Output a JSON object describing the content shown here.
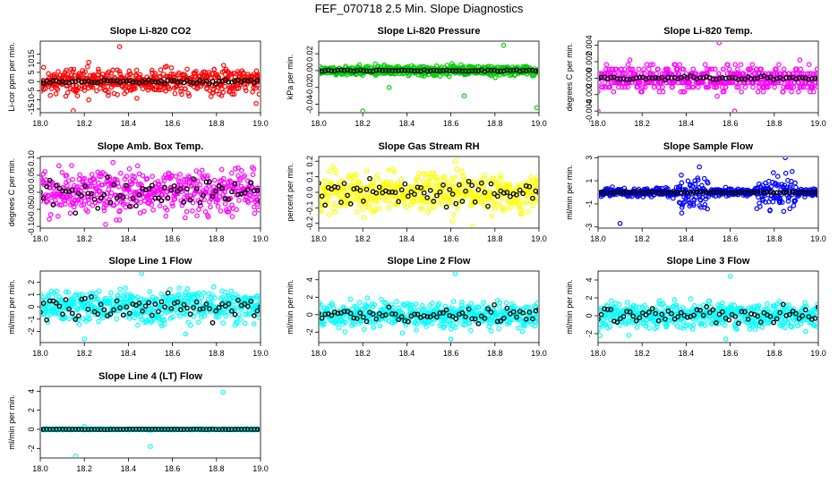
{
  "title": "FEF_070718  2.5 Min. Slope Diagnostics",
  "chart_data": [
    {
      "id": "co2",
      "type": "scatter",
      "title": "Slope Li-820 CO2",
      "ylabel": "Li-cor ppm per min.",
      "xlim": [
        18.0,
        19.0
      ],
      "ylim": [
        -17,
        22
      ],
      "xticks": [
        "18.0",
        "18.2",
        "18.4",
        "18.6",
        "18.8",
        "19.0"
      ],
      "yticks": [
        "-15",
        "-10",
        "-5",
        "0",
        "5",
        "10",
        "15"
      ],
      "color": "#ff0000",
      "amp": 5,
      "spike": "none",
      "spikes": [
        [
          18.36,
          19
        ],
        [
          18.15,
          -16
        ],
        [
          18.98,
          -12
        ],
        [
          18.22,
          -10
        ]
      ],
      "seed": 11
    },
    {
      "id": "pressure",
      "type": "scatter",
      "title": "Slope Li-820 Pressure",
      "ylabel": "kPa per min.",
      "xlim": [
        18.0,
        19.0
      ],
      "ylim": [
        -0.05,
        0.035
      ],
      "xticks": [
        "18.0",
        "18.2",
        "18.4",
        "18.6",
        "18.8",
        "19.0"
      ],
      "yticks": [
        "-0.04",
        "-0.02",
        "0.00",
        "0.02"
      ],
      "color": "#00cc00",
      "amp": 0.004,
      "spike": "none",
      "spikes": [
        [
          18.84,
          0.03
        ],
        [
          18.2,
          -0.048
        ],
        [
          18.99,
          -0.044
        ],
        [
          18.66,
          -0.03
        ],
        [
          18.32,
          -0.02
        ]
      ],
      "seed": 23
    },
    {
      "id": "temp",
      "type": "scatter",
      "title": "Slope Li-820 Temp.",
      "ylabel": "degrees C per min.",
      "xlim": [
        18.0,
        19.0
      ],
      "ylim": [
        -0.0042,
        0.0045
      ],
      "xticks": [
        "18.0",
        "18.2",
        "18.4",
        "18.6",
        "18.8",
        "19.0"
      ],
      "yticks": [
        "-0.004",
        "-0.002",
        "0.000",
        "0.002",
        "0.004"
      ],
      "color": "#ff00ff",
      "amp": 0.0011,
      "spike": "levels",
      "spikes": [
        [
          18.55,
          0.0043
        ],
        [
          18.0,
          -0.004
        ],
        [
          18.62,
          -0.004
        ]
      ],
      "seed": 37
    },
    {
      "id": "box",
      "type": "scatter",
      "title": "Slope Amb. Box Temp.",
      "ylabel": "degrees C per min.",
      "xlim": [
        18.0,
        19.0
      ],
      "ylim": [
        -0.105,
        0.105
      ],
      "xticks": [
        "18.0",
        "18.2",
        "18.4",
        "18.6",
        "18.8",
        "19.0"
      ],
      "yticks": [
        "-0.10",
        "-0.05",
        "0.00",
        "0.05",
        "0.10"
      ],
      "color": "#ff00ff",
      "amp": 0.045,
      "spike": "none",
      "spikes": [],
      "seed": 41
    },
    {
      "id": "rh",
      "type": "scatter",
      "title": "Slope Gas Stream RH",
      "ylabel": "percent per min.",
      "xlim": [
        18.0,
        19.0
      ],
      "ylim": [
        -0.23,
        0.23
      ],
      "xticks": [
        "18.0",
        "18.2",
        "18.4",
        "18.6",
        "18.8",
        "19.0"
      ],
      "yticks": [
        "-0.2",
        "-0.1",
        "0.0",
        "0.1",
        "0.2"
      ],
      "color": "#ffff00",
      "amp": 0.09,
      "spike": "none",
      "spikes": [
        [
          18.62,
          0.2
        ],
        [
          18.7,
          -0.22
        ]
      ],
      "seed": 53
    },
    {
      "id": "sample",
      "type": "scatter",
      "title": "Slope Sample Flow",
      "ylabel": "ml/min per min.",
      "xlim": [
        18.0,
        19.0
      ],
      "ylim": [
        -3.1,
        3.1
      ],
      "xticks": [
        "18.0",
        "18.2",
        "18.4",
        "18.6",
        "18.8",
        "19.0"
      ],
      "yticks": [
        "-3",
        "-1",
        "1",
        "3"
      ],
      "color": "#0000ff",
      "amp": 0.25,
      "spike": "bursts",
      "spikes": [
        [
          18.85,
          3.0
        ],
        [
          18.1,
          -2.7
        ],
        [
          18.46,
          2.2
        ],
        [
          18.38,
          -1.8
        ],
        [
          18.78,
          -1.6
        ]
      ],
      "seed": 67
    },
    {
      "id": "line1",
      "type": "scatter",
      "title": "Slope Line 1 Flow",
      "ylabel": "ml/min per min.",
      "xlim": [
        18.0,
        19.0
      ],
      "ylim": [
        -2.9,
        2.9
      ],
      "xticks": [
        "18.0",
        "18.2",
        "18.4",
        "18.6",
        "18.8",
        "19.0"
      ],
      "yticks": [
        "-2",
        "-1",
        "0",
        "1",
        "2"
      ],
      "color": "#00ffff",
      "amp": 0.9,
      "spike": "none",
      "spikes": [
        [
          18.46,
          2.7
        ],
        [
          18.2,
          -2.6
        ],
        [
          18.66,
          -2.2
        ]
      ],
      "seed": 71
    },
    {
      "id": "line2",
      "type": "scatter",
      "title": "Slope Line 2 Flow",
      "ylabel": "ml/min per min.",
      "xlim": [
        18.0,
        19.0
      ],
      "ylim": [
        -3.2,
        5.0
      ],
      "xticks": [
        "18.0",
        "18.2",
        "18.4",
        "18.6",
        "18.8",
        "19.0"
      ],
      "yticks": [
        "-2",
        "0",
        "2",
        "4"
      ],
      "color": "#00ffff",
      "amp": 1.0,
      "spike": "none",
      "spikes": [
        [
          18.62,
          4.7
        ],
        [
          18.6,
          -2.8
        ],
        [
          18.38,
          -2.1
        ]
      ],
      "seed": 83
    },
    {
      "id": "line3",
      "type": "scatter",
      "title": "Slope Line 3 Flow",
      "ylabel": "ml/min per min.",
      "xlim": [
        18.0,
        19.0
      ],
      "ylim": [
        -3.0,
        5.0
      ],
      "xticks": [
        "18.0",
        "18.2",
        "18.4",
        "18.6",
        "18.8",
        "19.0"
      ],
      "yticks": [
        "-2",
        "0",
        "2",
        "4"
      ],
      "color": "#00ffff",
      "amp": 1.0,
      "spike": "none",
      "spikes": [
        [
          18.6,
          4.4
        ],
        [
          18.58,
          -2.6
        ],
        [
          18.14,
          -2.2
        ]
      ],
      "seed": 97
    },
    {
      "id": "line4",
      "type": "scatter",
      "title": "Slope Line 4 (LT) Flow",
      "ylabel": "ml/min per min.",
      "xlim": [
        18.0,
        19.0
      ],
      "ylim": [
        -3.0,
        4.5
      ],
      "xticks": [
        "18.0",
        "18.2",
        "18.4",
        "18.6",
        "18.8",
        "19.0"
      ],
      "yticks": [
        "-2",
        "0",
        "2",
        "4"
      ],
      "color": "#00ffff",
      "amp": 0.04,
      "spike": "none",
      "spikes": [
        [
          18.83,
          3.9
        ],
        [
          18.5,
          -1.8
        ],
        [
          18.16,
          -2.8
        ],
        [
          18.2,
          0.3
        ]
      ],
      "seed": 101
    }
  ]
}
